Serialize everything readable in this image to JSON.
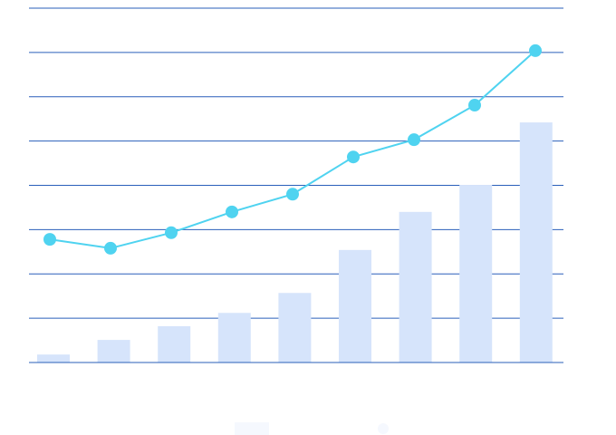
{
  "chart_data": {
    "type": "bar+line",
    "title": "",
    "xlabel": "",
    "ylabel": "",
    "categories": [
      "",
      "",
      "",
      "",
      "",
      "",
      "",
      "",
      ""
    ],
    "ylim": [
      0,
      8
    ],
    "grid": true,
    "legend": "bottom",
    "series": [
      {
        "type": "bar",
        "color": "#d6e4fb",
        "values": [
          0.18,
          0.51,
          0.82,
          1.12,
          1.57,
          2.54,
          3.4,
          4.01,
          5.42
        ]
      },
      {
        "type": "line",
        "color": "#4fd3f0",
        "values": [
          2.78,
          2.58,
          2.93,
          3.4,
          3.8,
          4.64,
          5.03,
          5.81,
          7.04
        ]
      }
    ],
    "gridline_color": "#2a5fba"
  }
}
